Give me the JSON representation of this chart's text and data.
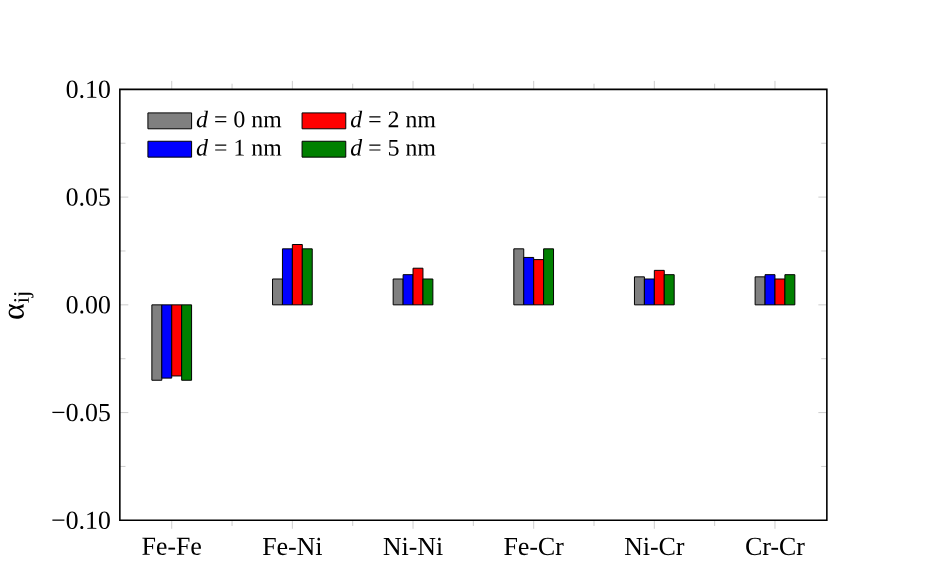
{
  "chart_data": {
    "type": "bar",
    "ylabel": "α$_{ij}$",
    "categories": [
      "Fe-Fe",
      "Fe-Ni",
      "Ni-Ni",
      "Fe-Cr",
      "Ni-Cr",
      "Cr-Cr"
    ],
    "series": [
      {
        "name": "*d* = 0 nm",
        "color": "#808080",
        "values": [
          -0.035,
          0.012,
          0.012,
          0.026,
          0.013,
          0.013
        ]
      },
      {
        "name": "*d* = 1 nm",
        "color": "#0000ff",
        "values": [
          -0.034,
          0.026,
          0.014,
          0.022,
          0.012,
          0.014
        ]
      },
      {
        "name": "*d* = 2 nm",
        "color": "#ff0000",
        "values": [
          -0.033,
          0.028,
          0.017,
          0.021,
          0.016,
          0.012
        ]
      },
      {
        "name": "*d* = 5 nm",
        "color": "#008000",
        "values": [
          -0.035,
          0.026,
          0.012,
          0.026,
          0.014,
          0.014
        ]
      }
    ],
    "ylim": [
      -0.1,
      0.1
    ],
    "yticks": [
      {
        "value": -0.1,
        "label": "−0.10"
      },
      {
        "value": -0.05,
        "label": "−0.05"
      },
      {
        "value": 0,
        "label": "0.00"
      },
      {
        "value": 0.05,
        "label": "0.05"
      },
      {
        "value": 0.1,
        "label": "0.10"
      }
    ],
    "legend": "top left",
    "grid": false
  }
}
